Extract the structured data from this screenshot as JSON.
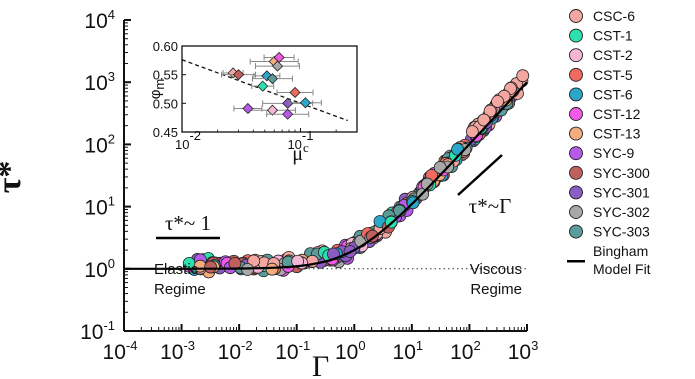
{
  "chart_data": [
    {
      "type": "scatter",
      "title": "",
      "xlabel": "Γ",
      "ylabel": "τ*",
      "xscale": "log",
      "yscale": "log",
      "xlim": [
        0.0001,
        1000
      ],
      "ylim": [
        0.1,
        10000
      ],
      "x_ticks": [
        {
          "base": "10",
          "exp": "-4"
        },
        {
          "base": "10",
          "exp": "-3"
        },
        {
          "base": "10",
          "exp": "-2"
        },
        {
          "base": "10",
          "exp": "-1"
        },
        {
          "base": "10",
          "exp": "0"
        },
        {
          "base": "10",
          "exp": "1"
        },
        {
          "base": "10",
          "exp": "2"
        },
        {
          "base": "10",
          "exp": "3"
        }
      ],
      "y_ticks": [
        {
          "base": "10",
          "exp": "-1"
        },
        {
          "base": "10",
          "exp": "0"
        },
        {
          "base": "10",
          "exp": "1"
        },
        {
          "base": "10",
          "exp": "2"
        },
        {
          "base": "10",
          "exp": "3"
        },
        {
          "base": "10",
          "exp": "4"
        }
      ],
      "annotations": {
        "elastic_power_law": "τ*~ 1",
        "viscous_power_law": "τ*~Γ",
        "elastic_regime": [
          "Elastic",
          "Regime"
        ],
        "viscous_regime": [
          "Viscous",
          "Regime"
        ]
      },
      "legend_position": "right",
      "legend": [
        {
          "name": "CSC-6",
          "color": "#f4a6a0"
        },
        {
          "name": "CST-1",
          "color": "#2ee0b0"
        },
        {
          "name": "CST-2",
          "color": "#f5b6d6"
        },
        {
          "name": "CST-5",
          "color": "#f06a60"
        },
        {
          "name": "CST-6",
          "color": "#2aa7c9"
        },
        {
          "name": "CST-12",
          "color": "#f05ae6"
        },
        {
          "name": "CST-13",
          "color": "#f4ad7e"
        },
        {
          "name": "SYC-9",
          "color": "#b65ae8"
        },
        {
          "name": "SYC-300",
          "color": "#c0605c"
        },
        {
          "name": "SYC-301",
          "color": "#8a5cc4"
        },
        {
          "name": "SYC-302",
          "color": "#a8a8a8"
        },
        {
          "name": "SYC-303",
          "color": "#5a9c9a"
        }
      ],
      "fit_line": {
        "label_lines": [
          "Bingham",
          "Model Fit"
        ],
        "model": "τ* = 1 + Γ"
      },
      "reference_line": {
        "y": 1,
        "style": "dotted"
      }
    },
    {
      "type": "scatter",
      "inset": true,
      "xlabel": "μc",
      "ylabel": "φm",
      "xscale": "log",
      "xlim": [
        0.01,
        0.3
      ],
      "ylim": [
        0.45,
        0.6
      ],
      "x_ticks": [
        {
          "base": "10",
          "exp": "-2"
        },
        {
          "base": "10",
          "exp": "-1"
        }
      ],
      "y_ticks": [
        "0.45",
        "0.50",
        "0.55",
        "0.60"
      ],
      "points": [
        {
          "series": "CSC-6",
          "x": 0.027,
          "y": 0.553
        },
        {
          "series": "SYC-300",
          "x": 0.03,
          "y": 0.55
        },
        {
          "series": "CST-13",
          "x": 0.06,
          "y": 0.573
        },
        {
          "series": "CST-12",
          "x": 0.066,
          "y": 0.58
        },
        {
          "series": "SYC-302",
          "x": 0.064,
          "y": 0.565
        },
        {
          "series": "CST-6",
          "x": 0.052,
          "y": 0.548
        },
        {
          "series": "SYC-303",
          "x": 0.058,
          "y": 0.543
        },
        {
          "series": "CST-1",
          "x": 0.048,
          "y": 0.53
        },
        {
          "series": "CST-5",
          "x": 0.09,
          "y": 0.519
        },
        {
          "series": "SYC-301",
          "x": 0.078,
          "y": 0.5
        },
        {
          "series": "CST-6",
          "x": 0.11,
          "y": 0.501
        },
        {
          "series": "CST-2",
          "x": 0.058,
          "y": 0.488
        },
        {
          "series": "SYC-9",
          "x": 0.036,
          "y": 0.491
        },
        {
          "series": "SYC-9",
          "x": 0.078,
          "y": 0.481
        }
      ],
      "trend_line": {
        "style": "dashed",
        "from": {
          "x": 0.01,
          "y": 0.576
        },
        "to": {
          "x": 0.25,
          "y": 0.47
        }
      }
    }
  ]
}
